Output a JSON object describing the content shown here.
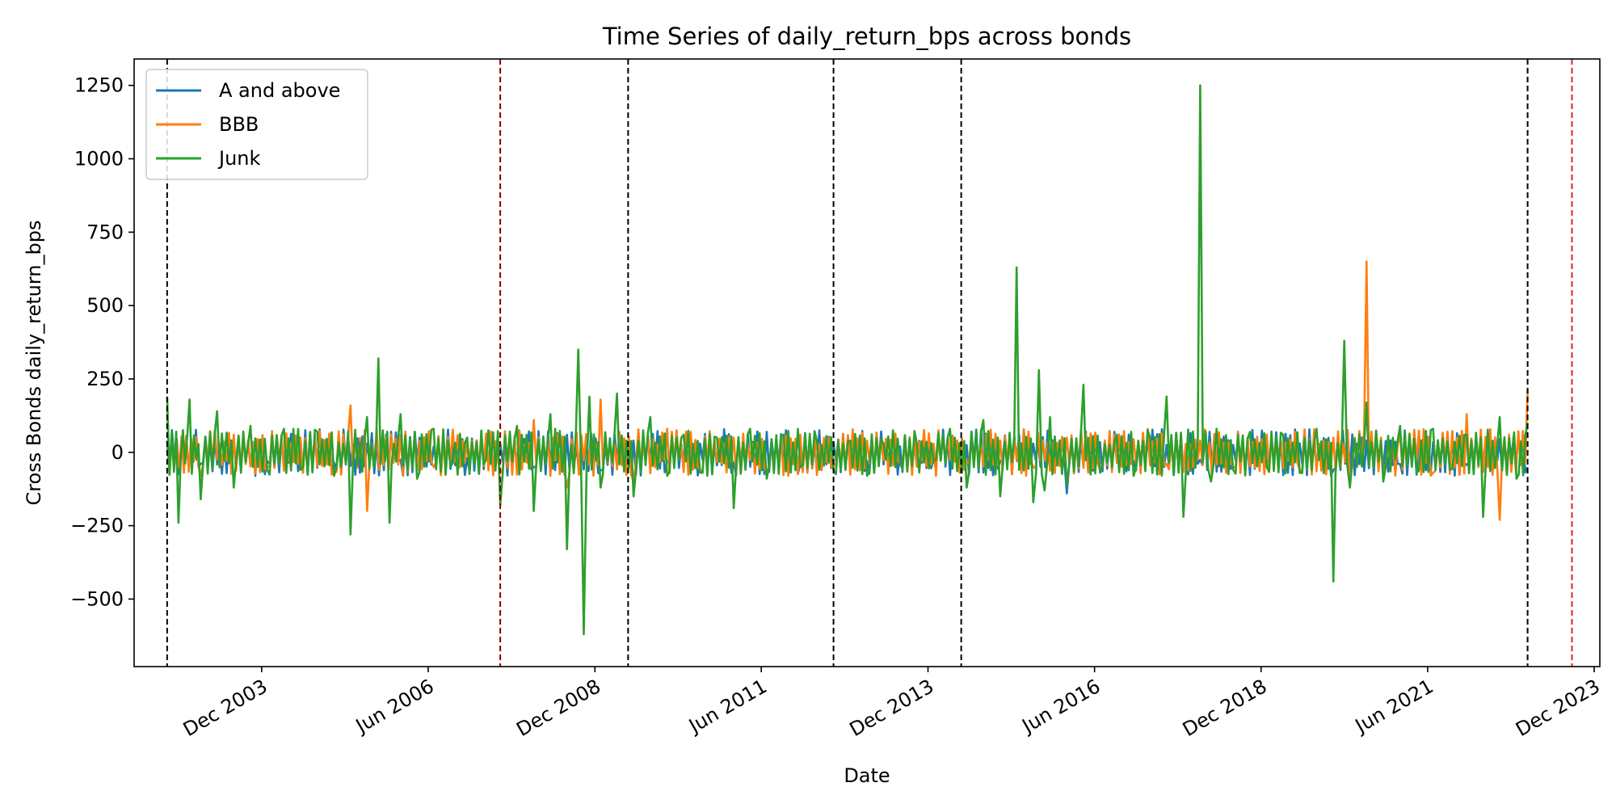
{
  "chart_data": {
    "type": "line",
    "title": "Time Series of daily_return_bps across bonds",
    "xlabel": "Date",
    "ylabel": "Cross Bonds daily_return_bps",
    "x_range": [
      "2002-01-01",
      "2024-01-01"
    ],
    "ylim": [
      -730,
      1340
    ],
    "x_tick_labels": [
      {
        "date": "2003-12-01",
        "label": "Dec 2003"
      },
      {
        "date": "2006-06-01",
        "label": "Jun 2006"
      },
      {
        "date": "2008-12-01",
        "label": "Dec 2008"
      },
      {
        "date": "2011-06-01",
        "label": "Jun 2011"
      },
      {
        "date": "2013-12-01",
        "label": "Dec 2013"
      },
      {
        "date": "2016-06-01",
        "label": "Jun 2016"
      },
      {
        "date": "2018-12-01",
        "label": "Dec 2018"
      },
      {
        "date": "2021-06-01",
        "label": "Jun 2021"
      },
      {
        "date": "2023-12-01",
        "label": "Dec 2023"
      }
    ],
    "y_ticks": [
      {
        "value": 1250,
        "label": "1250"
      },
      {
        "value": 1000,
        "label": "1000"
      },
      {
        "value": 750,
        "label": "750"
      },
      {
        "value": 500,
        "label": "500"
      },
      {
        "value": 250,
        "label": "250"
      },
      {
        "value": 0,
        "label": "0"
      },
      {
        "value": -250,
        "label": "−250"
      },
      {
        "value": -500,
        "label": "−500"
      }
    ],
    "grid": false,
    "legend_position": "top-left",
    "vertical_lines": [
      {
        "date": "2002-07-01",
        "color": "#000000"
      },
      {
        "date": "2007-07-01",
        "color": "#8b0000"
      },
      {
        "date": "2009-06-01",
        "color": "#000000"
      },
      {
        "date": "2012-07-01",
        "color": "#000000"
      },
      {
        "date": "2014-06-01",
        "color": "#000000"
      },
      {
        "date": "2022-12-01",
        "color": "#000000"
      },
      {
        "date": "2023-08-01",
        "color": "#d62728"
      }
    ],
    "series": [
      {
        "name": "A and above",
        "color": "#1f77b4",
        "x": [
          "2002-07",
          "2003-01",
          "2003-07",
          "2004-01",
          "2004-07",
          "2005-01",
          "2005-07",
          "2006-01",
          "2006-07",
          "2007-01",
          "2007-07",
          "2008-01",
          "2008-07",
          "2009-01",
          "2009-07",
          "2010-01",
          "2010-07",
          "2011-01",
          "2011-07",
          "2012-01",
          "2012-07",
          "2013-01",
          "2013-07",
          "2014-01",
          "2014-07",
          "2015-01",
          "2015-07",
          "2016-01",
          "2016-07",
          "2017-01",
          "2017-07",
          "2018-01",
          "2018-07",
          "2019-01",
          "2019-07",
          "2020-01",
          "2020-07",
          "2021-01",
          "2021-07",
          "2022-01",
          "2022-07",
          "2022-12"
        ],
        "y": [
          40,
          -40,
          35,
          -30,
          25,
          -35,
          30,
          -25,
          20,
          -20,
          30,
          -50,
          60,
          -60,
          40,
          -30,
          30,
          -35,
          70,
          -40,
          35,
          -30,
          20,
          -20,
          25,
          -30,
          30,
          -140,
          35,
          -30,
          25,
          -25,
          25,
          -30,
          30,
          -60,
          40,
          -40,
          35,
          -40,
          45,
          -50
        ]
      },
      {
        "name": "BBB",
        "color": "#ff7f0e",
        "x": [
          "2002-07",
          "2003-01",
          "2003-07",
          "2004-01",
          "2004-07",
          "2005-01",
          "2005-04",
          "2005-07",
          "2006-01",
          "2006-07",
          "2007-01",
          "2007-07",
          "2008-01",
          "2008-07",
          "2009-01",
          "2009-07",
          "2010-01",
          "2010-07",
          "2011-01",
          "2011-07",
          "2012-01",
          "2012-07",
          "2013-01",
          "2013-07",
          "2014-01",
          "2014-07",
          "2015-01",
          "2015-07",
          "2016-01",
          "2016-07",
          "2017-01",
          "2017-07",
          "2018-01",
          "2018-07",
          "2019-01",
          "2019-07",
          "2020-01",
          "2020-04",
          "2020-07",
          "2020-10",
          "2021-01",
          "2021-07",
          "2022-01",
          "2022-07",
          "2022-12"
        ],
        "y": [
          150,
          -80,
          60,
          -50,
          50,
          -60,
          160,
          -200,
          60,
          -50,
          40,
          -60,
          110,
          -120,
          180,
          -100,
          80,
          -60,
          50,
          -70,
          60,
          -50,
          40,
          -40,
          30,
          -30,
          40,
          -50,
          50,
          -60,
          45,
          -40,
          40,
          -50,
          60,
          -60,
          50,
          -100,
          650,
          -80,
          60,
          -70,
          130,
          -230,
          210
        ]
      },
      {
        "name": "Junk",
        "color": "#2ca02c",
        "x": [
          "2002-07",
          "2002-09",
          "2002-11",
          "2003-01",
          "2003-04",
          "2003-07",
          "2003-10",
          "2004-01",
          "2004-04",
          "2004-07",
          "2004-10",
          "2005-01",
          "2005-04",
          "2005-07",
          "2005-09",
          "2005-11",
          "2006-01",
          "2006-04",
          "2006-07",
          "2006-10",
          "2007-01",
          "2007-04",
          "2007-07",
          "2007-10",
          "2008-01",
          "2008-04",
          "2008-07",
          "2008-09",
          "2008-10",
          "2008-11",
          "2009-01",
          "2009-04",
          "2009-07",
          "2009-10",
          "2010-01",
          "2010-04",
          "2010-07",
          "2010-10",
          "2011-01",
          "2011-04",
          "2011-07",
          "2011-10",
          "2012-01",
          "2012-04",
          "2012-07",
          "2012-10",
          "2013-01",
          "2013-04",
          "2013-07",
          "2013-10",
          "2014-01",
          "2014-04",
          "2014-07",
          "2014-10",
          "2015-01",
          "2015-04",
          "2015-07",
          "2015-08",
          "2015-09",
          "2015-10",
          "2016-01",
          "2016-04",
          "2016-07",
          "2016-10",
          "2017-01",
          "2017-04",
          "2017-07",
          "2017-10",
          "2018-01",
          "2018-03",
          "2018-04",
          "2018-07",
          "2018-10",
          "2019-01",
          "2019-04",
          "2019-07",
          "2019-10",
          "2020-01",
          "2020-03",
          "2020-04",
          "2020-07",
          "2020-10",
          "2021-01",
          "2021-04",
          "2021-07",
          "2021-10",
          "2022-01",
          "2022-04",
          "2022-07",
          "2022-10",
          "2022-12"
        ],
        "y": [
          190,
          -240,
          180,
          -160,
          140,
          -120,
          90,
          -60,
          80,
          -60,
          70,
          -80,
          -280,
          120,
          320,
          -240,
          130,
          -90,
          80,
          -50,
          50,
          -40,
          -180,
          90,
          -200,
          130,
          -330,
          350,
          -620,
          190,
          -120,
          200,
          -150,
          120,
          -80,
          60,
          -70,
          50,
          -190,
          80,
          -90,
          60,
          -50,
          40,
          -60,
          40,
          -80,
          30,
          -40,
          30,
          -30,
          80,
          -120,
          110,
          -150,
          630,
          -170,
          280,
          -130,
          120,
          -110,
          230,
          -70,
          60,
          -80,
          50,
          190,
          -220,
          1250,
          -100,
          80,
          -60,
          70,
          -50,
          60,
          -70,
          80,
          -440,
          380,
          -120,
          170,
          -100,
          90,
          -70,
          80,
          -60,
          60,
          -220,
          120,
          -90,
          100
        ]
      }
    ]
  }
}
